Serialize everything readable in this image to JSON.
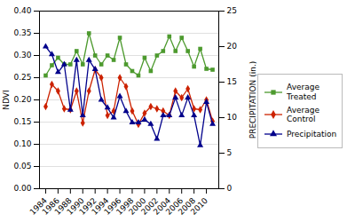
{
  "chart_data": {
    "type": "line",
    "x": [
      1984,
      1985,
      1986,
      1987,
      1988,
      1989,
      1990,
      1991,
      1992,
      1993,
      1994,
      1995,
      1996,
      1997,
      1998,
      1999,
      2000,
      2001,
      2002,
      2003,
      2004,
      2005,
      2006,
      2007,
      2008,
      2009,
      2010,
      2011
    ],
    "xlim": [
      1983,
      2012
    ],
    "xticks": [
      1984,
      1986,
      1988,
      1990,
      1992,
      1994,
      1996,
      1998,
      2000,
      2002,
      2004,
      2006,
      2008,
      2010
    ],
    "ylabel": "NDVI",
    "y2label": "PRECIPITATION (in.)",
    "ylim": [
      0,
      0.4
    ],
    "yticks": [
      {
        "value": 0,
        "label": "0.00"
      },
      {
        "value": 0.05,
        "label": "0.05"
      },
      {
        "value": 0.1,
        "label": "0.10"
      },
      {
        "value": 0.15,
        "label": "0.15"
      },
      {
        "value": 0.2,
        "label": "0.20"
      },
      {
        "value": 0.25,
        "label": "0.25"
      },
      {
        "value": 0.3,
        "label": "0.30"
      },
      {
        "value": 0.35,
        "label": "0.35"
      },
      {
        "value": 0.4,
        "label": "0.40"
      }
    ],
    "y2lim": [
      0,
      25
    ],
    "y2ticks": [
      0,
      5,
      10,
      15,
      20,
      25
    ],
    "grid": true,
    "legend": "right",
    "series": [
      {
        "name": "Average\nTreated",
        "color": "#4d9a2e",
        "marker": "square",
        "values": [
          0.255,
          0.278,
          0.295,
          0.28,
          0.28,
          0.31,
          0.28,
          0.35,
          0.3,
          0.28,
          0.3,
          0.29,
          0.34,
          0.28,
          0.265,
          0.255,
          0.295,
          0.265,
          0.3,
          0.31,
          0.343,
          0.31,
          0.34,
          0.31,
          0.275,
          0.315,
          0.27,
          0.268
        ]
      },
      {
        "name": "Average\nControl",
        "color": "#cc2200",
        "marker": "diamond",
        "values": [
          0.185,
          0.235,
          0.22,
          0.18,
          0.178,
          0.22,
          0.148,
          0.22,
          0.268,
          0.25,
          0.165,
          0.175,
          0.25,
          0.23,
          0.175,
          0.145,
          0.17,
          0.185,
          0.18,
          0.175,
          0.165,
          0.22,
          0.205,
          0.225,
          0.18,
          0.178,
          0.2,
          0.152
        ]
      },
      {
        "name": "Precipitation",
        "color": "#00008b",
        "marker": "triangle",
        "axis": "y2",
        "values": [
          20.0,
          18.9,
          16.4,
          17.5,
          11.1,
          18.1,
          10.3,
          18.1,
          16.8,
          12.5,
          11.4,
          10.0,
          13.0,
          10.9,
          9.3,
          9.3,
          9.7,
          9.1,
          7.0,
          10.3,
          10.3,
          12.8,
          10.3,
          12.8,
          10.3,
          6.1,
          12.2,
          9.1
        ]
      }
    ]
  }
}
